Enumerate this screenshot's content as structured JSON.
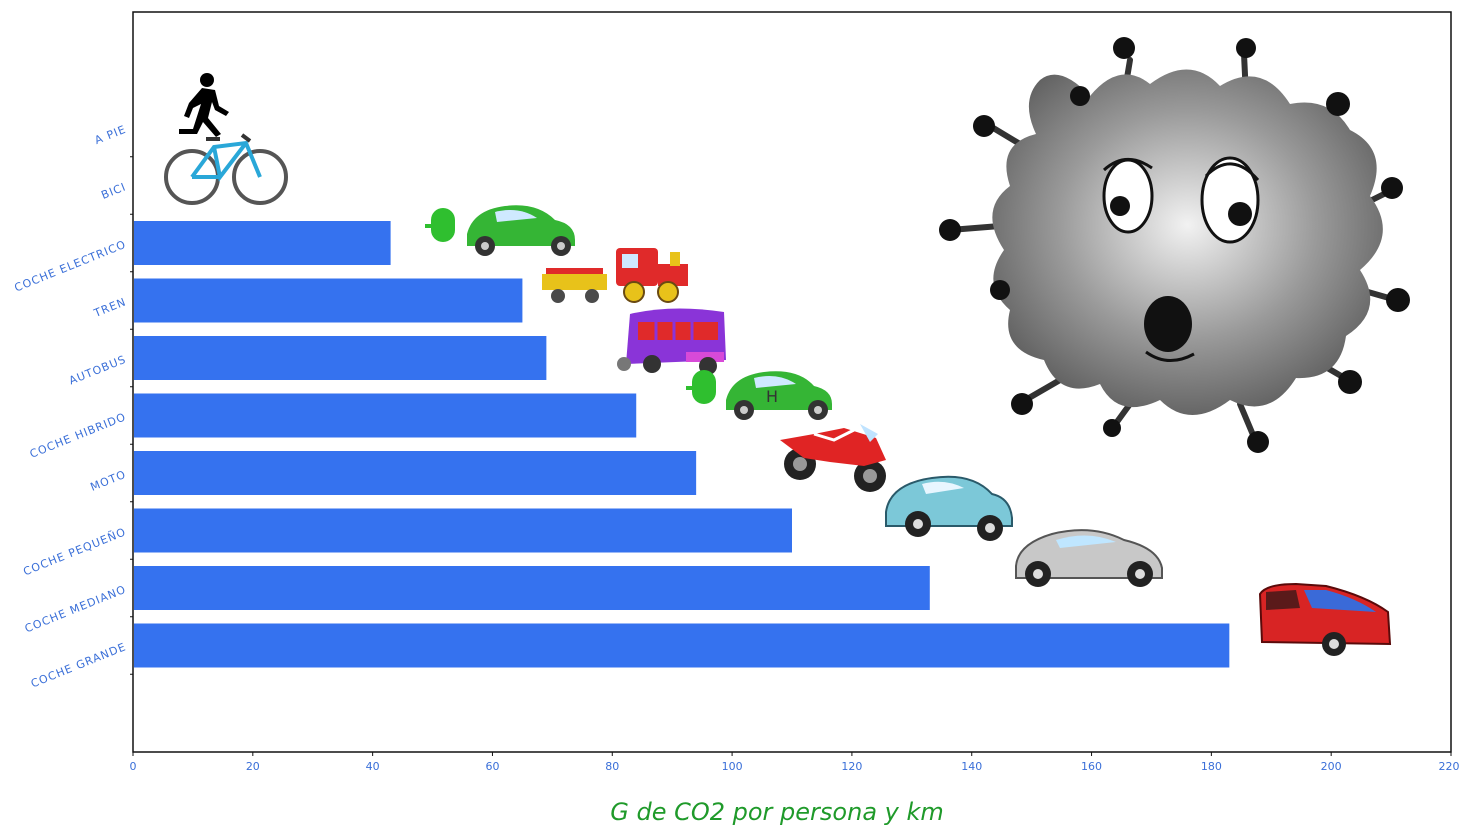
{
  "chart_data": {
    "type": "bar",
    "orientation": "horizontal",
    "categories": [
      "A PIE",
      "BICI",
      "COCHE ELECTRICO",
      "TREN",
      "AUTOBUS",
      "COCHE HIBRIDO",
      "MOTO",
      "COCHE PEQUEÑO",
      "COCHE MEDIANO",
      "COCHE GRANDE"
    ],
    "values": [
      0,
      0,
      43,
      65,
      69,
      84,
      94,
      110,
      133,
      183
    ],
    "xlabel": "G de CO2 por persona y km",
    "ylabel": "",
    "title": "",
    "xlim": [
      0,
      220
    ],
    "xticks": [
      "0",
      "20",
      "40",
      "60",
      "80",
      "100",
      "120",
      "140",
      "160",
      "180",
      "200",
      "220"
    ],
    "grid": false,
    "legend": "none",
    "bar_color": "#3572ef",
    "label_color": "#3a6fd8",
    "xlabel_color": "#1f9a2a",
    "icons": [
      "pedestrian-icon",
      "bicycle-icon",
      "electric-car-icon",
      "train-icon",
      "bus-icon",
      "hybrid-car-icon",
      "motorcycle-icon",
      "small-car-icon",
      "medium-car-icon",
      "large-car-icon",
      "pollution-germ-icon"
    ],
    "hybrid_badge": "H"
  }
}
